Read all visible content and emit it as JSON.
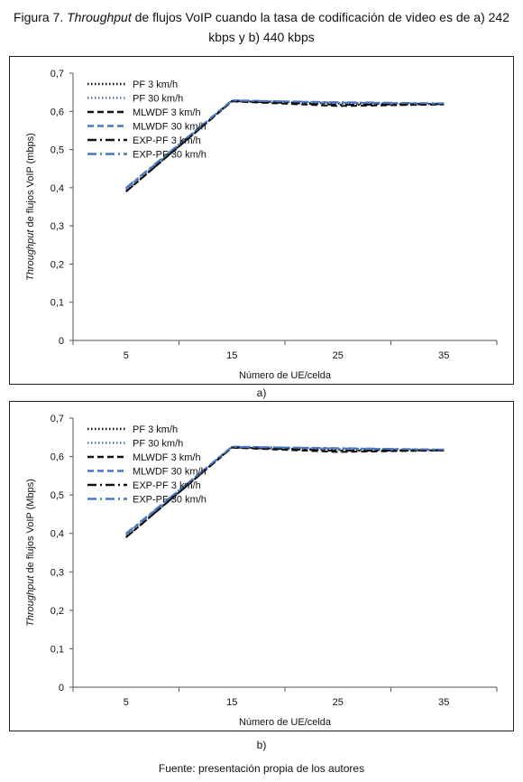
{
  "caption": {
    "prefix": "Figura 7.",
    "italic": "Throughput",
    "rest": "de flujos VoIP cuando la tasa de codificación de video es de a) 242 kbps y b) 440 kbps"
  },
  "source": "Fuente: presentación propia de los autores",
  "colors": {
    "black": "#111111",
    "blue": "#4a78c0"
  },
  "chart_data": [
    {
      "type": "line",
      "panel_label": "a)",
      "x": [
        5,
        15,
        25,
        35
      ],
      "xlabel": "Número de UE/celda",
      "ylabel_italic": "Throughput",
      "ylabel_rest": "de flujos VoIP (mbps)",
      "ylim": [
        0,
        0.7
      ],
      "yticks": [
        "0",
        "0,1",
        "0,2",
        "0,3",
        "0,4",
        "0,5",
        "0,6",
        "0,7"
      ],
      "grid": false,
      "legend_position": "top-left",
      "series": [
        {
          "name": "PF 3 km/h",
          "values": [
            0.39,
            0.627,
            0.62,
            0.619
          ],
          "color": "#111111",
          "dash": "dot"
        },
        {
          "name": "PF 30 km/h",
          "values": [
            0.395,
            0.628,
            0.622,
            0.62
          ],
          "color": "#4a78c0",
          "dash": "dot"
        },
        {
          "name": "MLWDF 3 km/h",
          "values": [
            0.39,
            0.626,
            0.614,
            0.618
          ],
          "color": "#111111",
          "dash": "dash"
        },
        {
          "name": "MLWDF 30 km/h",
          "values": [
            0.398,
            0.629,
            0.623,
            0.62
          ],
          "color": "#4a78c0",
          "dash": "dash"
        },
        {
          "name": "EXP-PF 3 km/h",
          "values": [
            0.39,
            0.627,
            0.617,
            0.619
          ],
          "color": "#111111",
          "dash": "dashdot"
        },
        {
          "name": "EXP-PF 30 km/h",
          "values": [
            0.4,
            0.628,
            0.624,
            0.621
          ],
          "color": "#4a78c0",
          "dash": "dashdot"
        }
      ]
    },
    {
      "type": "line",
      "panel_label": "b)",
      "x": [
        5,
        15,
        25,
        35
      ],
      "xlabel": "Número de UE/celda",
      "ylabel_italic": "Throughput",
      "ylabel_rest": "de flujos VoIP (Mbps)",
      "ylim": [
        0,
        0.7
      ],
      "yticks": [
        "0",
        "0,1",
        "0,2",
        "0,3",
        "0,4",
        "0,5",
        "0,6",
        "0,7"
      ],
      "grid": false,
      "legend_position": "top-left",
      "series": [
        {
          "name": "PF 3 km/h",
          "values": [
            0.39,
            0.624,
            0.617,
            0.616
          ],
          "color": "#111111",
          "dash": "dot"
        },
        {
          "name": "PF 30 km/h",
          "values": [
            0.395,
            0.625,
            0.62,
            0.617
          ],
          "color": "#4a78c0",
          "dash": "dot"
        },
        {
          "name": "MLWDF 3 km/h",
          "values": [
            0.39,
            0.623,
            0.612,
            0.616
          ],
          "color": "#111111",
          "dash": "dash"
        },
        {
          "name": "MLWDF 30 km/h",
          "values": [
            0.398,
            0.626,
            0.621,
            0.618
          ],
          "color": "#4a78c0",
          "dash": "dash"
        },
        {
          "name": "EXP-PF 3 km/h",
          "values": [
            0.39,
            0.624,
            0.615,
            0.616
          ],
          "color": "#111111",
          "dash": "dashdot"
        },
        {
          "name": "EXP-PF 30 km/h",
          "values": [
            0.4,
            0.625,
            0.622,
            0.618
          ],
          "color": "#4a78c0",
          "dash": "dashdot"
        }
      ]
    }
  ]
}
